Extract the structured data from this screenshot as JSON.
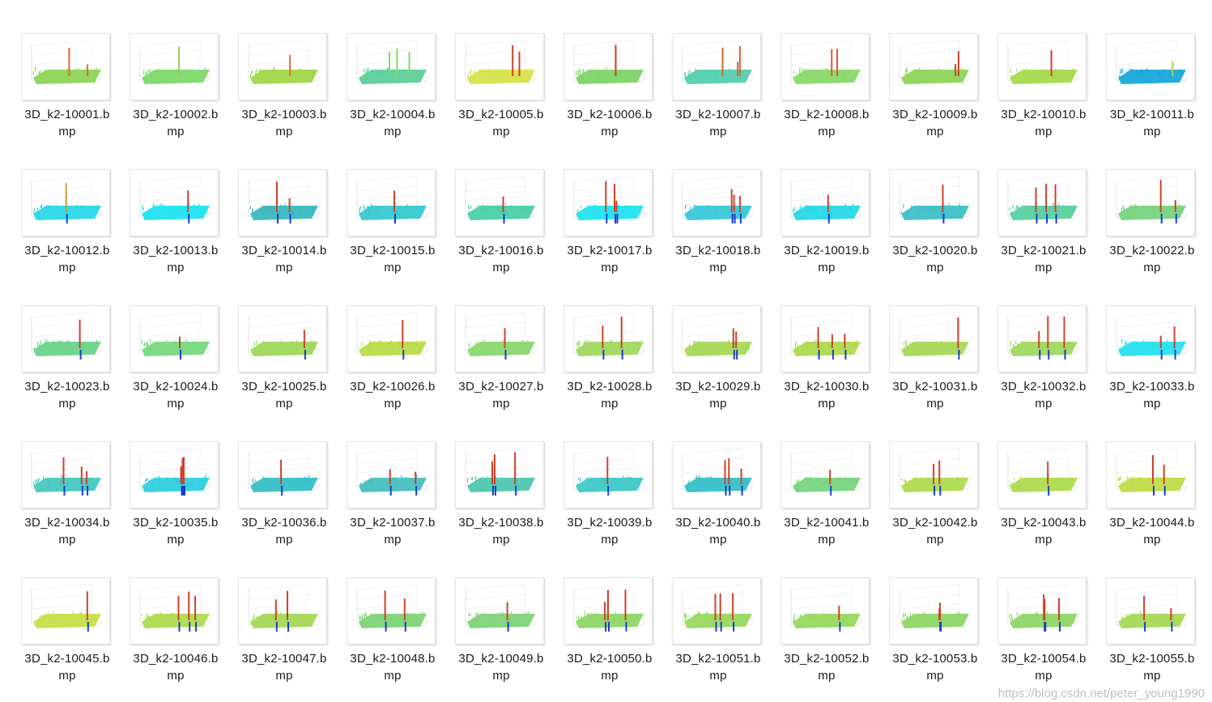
{
  "files": [
    {
      "line1": "3D_k2-10001.b",
      "line2": "mp",
      "surface": "#8fd45a",
      "spike": "#d86a2a"
    },
    {
      "line1": "3D_k2-10002.b",
      "line2": "mp",
      "surface": "#7fd86a",
      "spike": "#9acc55"
    },
    {
      "line1": "3D_k2-10003.b",
      "line2": "mp",
      "surface": "#a2d64a",
      "spike": "#d86a2a"
    },
    {
      "line1": "3D_k2-10004.b",
      "line2": "mp",
      "surface": "#5fcf9a",
      "spike": "#7fd86a"
    },
    {
      "line1": "3D_k2-10005.b",
      "line2": "mp",
      "surface": "#d8e24a",
      "spike": "#d0402a"
    },
    {
      "line1": "3D_k2-10006.b",
      "line2": "mp",
      "surface": "#7ed46a",
      "spike": "#cc3a2a"
    },
    {
      "line1": "3D_k2-10007.b",
      "line2": "mp",
      "surface": "#55cfb0",
      "spike": "#d06a2a"
    },
    {
      "line1": "3D_k2-10008.b",
      "line2": "mp",
      "surface": "#8ad86a",
      "spike": "#d85a2a"
    },
    {
      "line1": "3D_k2-10009.b",
      "line2": "mp",
      "surface": "#8fd45a",
      "spike": "#d0402a"
    },
    {
      "line1": "3D_k2-10010.b",
      "line2": "mp",
      "surface": "#a8da4e",
      "spike": "#d0402a"
    },
    {
      "line1": "3D_k2-10011.b",
      "line2": "mp",
      "surface": "#1aa8d8",
      "spike": "#b8d040"
    },
    {
      "line1": "3D_k2-10012.b",
      "line2": "mp",
      "surface": "#2ad8e8",
      "spike": "#c0a030"
    },
    {
      "line1": "3D_k2-10013.b",
      "line2": "mp",
      "surface": "#22e4f0",
      "spike": "#d0402a"
    },
    {
      "line1": "3D_k2-10014.b",
      "line2": "mp",
      "surface": "#3ab8c0",
      "spike": "#d0402a"
    },
    {
      "line1": "3D_k2-10015.b",
      "line2": "mp",
      "surface": "#3ac8d0",
      "spike": "#d0402a"
    },
    {
      "line1": "3D_k2-10016.b",
      "line2": "mp",
      "surface": "#4ad0a8",
      "spike": "#d0402a"
    },
    {
      "line1": "3D_k2-10017.b",
      "line2": "mp",
      "surface": "#22e4f0",
      "spike": "#d0402a"
    },
    {
      "line1": "3D_k2-10018.b",
      "line2": "mp",
      "surface": "#3ac8d8",
      "spike": "#d0402a"
    },
    {
      "line1": "3D_k2-10019.b",
      "line2": "mp",
      "surface": "#28d8e8",
      "spike": "#d0402a"
    },
    {
      "line1": "3D_k2-10020.b",
      "line2": "mp",
      "surface": "#40c0c8",
      "spike": "#d0402a"
    },
    {
      "line1": "3D_k2-10021.b",
      "line2": "mp",
      "surface": "#5ad0a0",
      "spike": "#d0402a"
    },
    {
      "line1": "3D_k2-10022.b",
      "line2": "mp",
      "surface": "#78d480",
      "spike": "#d0402a"
    },
    {
      "line1": "3D_k2-10023.b",
      "line2": "mp",
      "surface": "#6ad48a",
      "spike": "#d0402a"
    },
    {
      "line1": "3D_k2-10024.b",
      "line2": "mp",
      "surface": "#78d880",
      "spike": "#d0402a"
    },
    {
      "line1": "3D_k2-10025.b",
      "line2": "mp",
      "surface": "#a0d85a",
      "spike": "#d0402a"
    },
    {
      "line1": "3D_k2-10026.b",
      "line2": "mp",
      "surface": "#b8dc4a",
      "spike": "#d0402a"
    },
    {
      "line1": "3D_k2-10027.b",
      "line2": "mp",
      "surface": "#8ad870",
      "spike": "#d0402a"
    },
    {
      "line1": "3D_k2-10028.b",
      "line2": "mp",
      "surface": "#a0d860",
      "spike": "#d0402a"
    },
    {
      "line1": "3D_k2-10029.b",
      "line2": "mp",
      "surface": "#a8d858",
      "spike": "#d0402a"
    },
    {
      "line1": "3D_k2-10030.b",
      "line2": "mp",
      "surface": "#b0da50",
      "spike": "#d0402a"
    },
    {
      "line1": "3D_k2-10031.b",
      "line2": "mp",
      "surface": "#a8d858",
      "spike": "#d0402a"
    },
    {
      "line1": "3D_k2-10032.b",
      "line2": "mp",
      "surface": "#a0d860",
      "spike": "#d0402a"
    },
    {
      "line1": "3D_k2-10033.b",
      "line2": "mp",
      "surface": "#2ae0f0",
      "spike": "#d0402a"
    },
    {
      "line1": "3D_k2-10034.b",
      "line2": "mp",
      "surface": "#48c8c0",
      "spike": "#d0402a"
    },
    {
      "line1": "3D_k2-10035.b",
      "line2": "mp",
      "surface": "#30d0e0",
      "spike": "#d0402a"
    },
    {
      "line1": "3D_k2-10036.b",
      "line2": "mp",
      "surface": "#38c0c8",
      "spike": "#d0402a"
    },
    {
      "line1": "3D_k2-10037.b",
      "line2": "mp",
      "surface": "#48c0c0",
      "spike": "#d0402a"
    },
    {
      "line1": "3D_k2-10038.b",
      "line2": "mp",
      "surface": "#50c8b0",
      "spike": "#d0402a"
    },
    {
      "line1": "3D_k2-10039.b",
      "line2": "mp",
      "surface": "#40c8c8",
      "spike": "#d0402a"
    },
    {
      "line1": "3D_k2-10040.b",
      "line2": "mp",
      "surface": "#38c0c8",
      "spike": "#d0402a"
    },
    {
      "line1": "3D_k2-10041.b",
      "line2": "mp",
      "surface": "#78d480",
      "spike": "#d0402a"
    },
    {
      "line1": "3D_k2-10042.b",
      "line2": "mp",
      "surface": "#b0da50",
      "spike": "#d0402a"
    },
    {
      "line1": "3D_k2-10043.b",
      "line2": "mp",
      "surface": "#b0da50",
      "spike": "#d0402a"
    },
    {
      "line1": "3D_k2-10044.b",
      "line2": "mp",
      "surface": "#c0dc48",
      "spike": "#d0402a"
    },
    {
      "line1": "3D_k2-10045.b",
      "line2": "mp",
      "surface": "#c8de48",
      "spike": "#d0402a"
    },
    {
      "line1": "3D_k2-10046.b",
      "line2": "mp",
      "surface": "#b0da50",
      "spike": "#d0402a"
    },
    {
      "line1": "3D_k2-10047.b",
      "line2": "mp",
      "surface": "#a8d858",
      "spike": "#d0402a"
    },
    {
      "line1": "3D_k2-10048.b",
      "line2": "mp",
      "surface": "#80d478",
      "spike": "#d0402a"
    },
    {
      "line1": "3D_k2-10049.b",
      "line2": "mp",
      "surface": "#80d478",
      "spike": "#d0402a"
    },
    {
      "line1": "3D_k2-10050.b",
      "line2": "mp",
      "surface": "#90d668",
      "spike": "#d0402a"
    },
    {
      "line1": "3D_k2-10051.b",
      "line2": "mp",
      "surface": "#98d860",
      "spike": "#d0402a"
    },
    {
      "line1": "3D_k2-10052.b",
      "line2": "mp",
      "surface": "#98d860",
      "spike": "#d0402a"
    },
    {
      "line1": "3D_k2-10053.b",
      "line2": "mp",
      "surface": "#90d668",
      "spike": "#d0402a"
    },
    {
      "line1": "3D_k2-10054.b",
      "line2": "mp",
      "surface": "#90d668",
      "spike": "#d0402a"
    },
    {
      "line1": "3D_k2-10055.b",
      "line2": "mp",
      "surface": "#a8d858",
      "spike": "#d0402a"
    }
  ],
  "watermark": "https://blog.csdn.net/peter_young1990"
}
